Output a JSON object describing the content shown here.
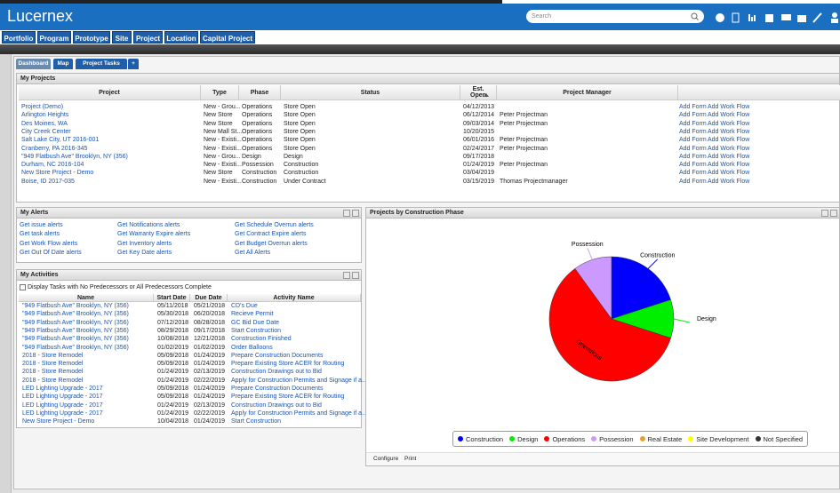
{
  "header": {
    "logo": "Lucernex",
    "search_placeholder": "Search"
  },
  "nav": [
    "Portfolio",
    "Program",
    "Prototype",
    "Site",
    "Project",
    "Location",
    "Capital Project"
  ],
  "tabs": [
    "Dashboard",
    "Map",
    "Project Tasks",
    "+"
  ],
  "my_projects": {
    "title": "My Projects",
    "columns": [
      "Project",
      "Type",
      "Phase",
      "Status",
      "Est. Open",
      "Project Manager"
    ],
    "actions": [
      "Add Form",
      "Add Work Flow"
    ],
    "rows": [
      [
        "Project (Demo)",
        "New - Grou...",
        "Operations",
        "Store Open",
        "04/12/2013",
        null
      ],
      [
        "Arlington Heights",
        "New Store",
        "Operations",
        "Store Open",
        "06/12/2014",
        "Peter Projectman"
      ],
      [
        "Des Moines, WA",
        "New Store",
        "Operations",
        "Store Open",
        "09/03/2014",
        "Peter Projectman"
      ],
      [
        "City Creek Center",
        "New Mall St...",
        "Operations",
        "Store Open",
        "10/20/2015",
        null
      ],
      [
        "Salt Lake City, UT 2016-001",
        "New - Existi...",
        "Operations",
        "Store Open",
        "06/01/2016",
        "Peter Projectman"
      ],
      [
        "Cranberry, PA 2016-345",
        "New - Existi...",
        "Operations",
        "Store Open",
        "02/24/2017",
        "Peter Projectman"
      ],
      [
        "\"949 Flatbush Ave\" Brooklyn, NY (356)",
        "New - Grou...",
        "Design",
        "Design",
        "09/17/2018",
        null
      ],
      [
        "Durham, NC 2016-104",
        "New - Existi...",
        "Possession",
        "Construction",
        "01/24/2019",
        "Peter Projectman"
      ],
      [
        "New Store Project - Demo",
        "New Store",
        "Construction",
        "Construction",
        "03/04/2019",
        null
      ],
      [
        "Boise, ID 2017-035",
        "New - Existi...",
        "Construction",
        "Under Contract",
        "03/15/2019",
        "Thomas Projectmanager"
      ]
    ]
  },
  "my_alerts": {
    "title": "My Alerts",
    "columns": [
      [
        "Get issue alerts",
        "Get task alerts",
        "Get Work Flow alerts",
        "Get Out Of Date alerts"
      ],
      [
        "Get Notifications alerts",
        "Get Warranty Expire alerts",
        "Get Inventory alerts",
        "Get Key Date alerts"
      ],
      [
        "Get Schedule Overrun alerts",
        "Get Contract Expire alerts",
        "Get Budget Overrun alerts",
        "Get All Alerts"
      ]
    ]
  },
  "my_activities": {
    "title": "My Activities",
    "checkbox_label": "Display Tasks with No Predecessors or All Predecessors Complete",
    "columns": [
      "Name",
      "Start Date",
      "Due Date",
      "Activity Name"
    ],
    "rows": [
      [
        "\"949 Flatbush Ave\" Brooklyn, NY (356)",
        "05/11/2018",
        "05/21/2018",
        "CD's Due"
      ],
      [
        "\"949 Flatbush Ave\" Brooklyn, NY (356)",
        "05/30/2018",
        "06/20/2018",
        "Recieve Permit"
      ],
      [
        "\"949 Flatbush Ave\" Brooklyn, NY (356)",
        "07/12/2018",
        "08/28/2018",
        "GC Bid Due Date"
      ],
      [
        "\"949 Flatbush Ave\" Brooklyn, NY (356)",
        "08/29/2018",
        "09/17/2018",
        "Start Construction"
      ],
      [
        "\"949 Flatbush Ave\" Brooklyn, NY (356)",
        "10/08/2018",
        "12/21/2018",
        "Construction Finished"
      ],
      [
        "\"949 Flatbush Ave\" Brooklyn, NY (356)",
        "01/02/2019",
        "01/02/2019",
        "Order Balloons"
      ],
      [
        "2018 - Store Remodel",
        "05/09/2018",
        "01/24/2019",
        "Prepare Construction Documents"
      ],
      [
        "2018 - Store Remodel",
        "05/09/2018",
        "01/24/2019",
        "Prepare Existing Store ACER for Routing"
      ],
      [
        "2018 - Store Remodel",
        "01/24/2019",
        "02/13/2019",
        "Construction Drawings out to Bid"
      ],
      [
        "2018 - Store Remodel",
        "01/24/2019",
        "02/22/2019",
        "Apply for Construction Permits and Signage if a..."
      ],
      [
        "LED Lighting Upgrade - 2017",
        "05/09/2018",
        "01/24/2019",
        "Prepare Construction Documents"
      ],
      [
        "LED Lighting Upgrade - 2017",
        "05/09/2018",
        "01/24/2019",
        "Prepare Existing Store ACER for Routing"
      ],
      [
        "LED Lighting Upgrade - 2017",
        "01/24/2019",
        "02/13/2019",
        "Construction Drawings out to Bid"
      ],
      [
        "LED Lighting Upgrade - 2017",
        "01/24/2019",
        "02/22/2019",
        "Apply for Construction Permits and Signage if a..."
      ],
      [
        "New Store Project - Demo",
        "10/04/2018",
        "01/24/2019",
        "Start Construction"
      ]
    ]
  },
  "chart_panel": {
    "title": "Projects by Construction Phase",
    "footer": [
      "Configure",
      "Print"
    ]
  },
  "chart_data": {
    "type": "pie",
    "categories": [
      "Construction",
      "Design",
      "Operations",
      "Possession",
      "Real Estate",
      "Site Development",
      "Not Specified"
    ],
    "values": [
      2,
      1,
      6,
      1,
      0,
      0,
      0
    ],
    "colors": [
      "#0000ff",
      "#00ee00",
      "#ff0000",
      "#cc99ff",
      "#e8a030",
      "#ffff00",
      "#333333"
    ]
  }
}
